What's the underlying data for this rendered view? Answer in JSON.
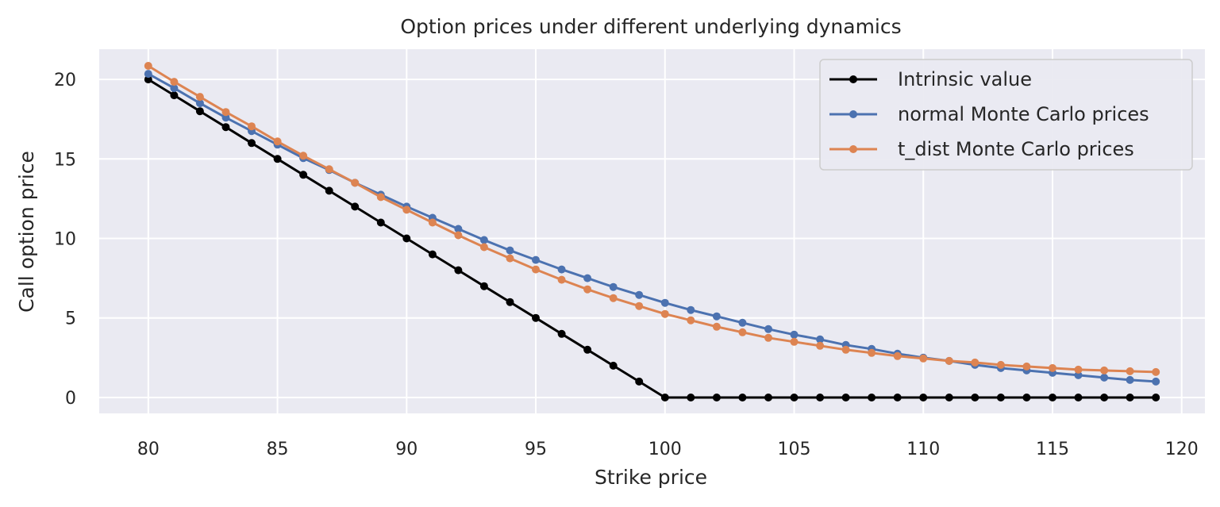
{
  "chart_data": {
    "type": "line",
    "title": "Option prices under different underlying dynamics",
    "xlabel": "Strike price",
    "ylabel": "Call option price",
    "xlim": [
      78.1,
      120.9
    ],
    "ylim": [
      -1.0,
      21.9
    ],
    "xticks": [
      80,
      85,
      90,
      95,
      100,
      105,
      110,
      115,
      120
    ],
    "yticks": [
      0,
      5,
      10,
      15,
      20
    ],
    "grid": true,
    "legend_position": "top-right",
    "x": [
      80,
      81,
      82,
      83,
      84,
      85,
      86,
      87,
      88,
      89,
      90,
      91,
      92,
      93,
      94,
      95,
      96,
      97,
      98,
      99,
      100,
      101,
      102,
      103,
      104,
      105,
      106,
      107,
      108,
      109,
      110,
      111,
      112,
      113,
      114,
      115,
      116,
      117,
      118,
      119
    ],
    "series": [
      {
        "name": "Intrinsic value",
        "color": "#000000",
        "values": [
          20,
          19,
          18,
          17,
          16,
          15,
          14,
          13,
          12,
          11,
          10,
          9,
          8,
          7,
          6,
          5,
          4,
          3,
          2,
          1,
          0,
          0,
          0,
          0,
          0,
          0,
          0,
          0,
          0,
          0,
          0,
          0,
          0,
          0,
          0,
          0,
          0,
          0,
          0,
          0
        ]
      },
      {
        "name": "normal Monte Carlo prices",
        "color": "#4c72b0",
        "values": [
          20.35,
          19.45,
          18.5,
          17.6,
          16.75,
          15.9,
          15.05,
          14.3,
          13.5,
          12.75,
          12.0,
          11.3,
          10.6,
          9.9,
          9.25,
          8.65,
          8.05,
          7.5,
          6.95,
          6.45,
          5.95,
          5.5,
          5.1,
          4.7,
          4.3,
          3.95,
          3.65,
          3.3,
          3.05,
          2.75,
          2.5,
          2.3,
          2.05,
          1.85,
          1.7,
          1.55,
          1.4,
          1.25,
          1.1,
          1.0
        ]
      },
      {
        "name": "t_dist Monte Carlo prices",
        "color": "#dd8452",
        "values": [
          20.85,
          19.85,
          18.9,
          17.95,
          17.05,
          16.1,
          15.2,
          14.35,
          13.5,
          12.6,
          11.8,
          11.0,
          10.2,
          9.45,
          8.75,
          8.05,
          7.4,
          6.8,
          6.25,
          5.75,
          5.25,
          4.85,
          4.45,
          4.1,
          3.75,
          3.5,
          3.25,
          3.0,
          2.8,
          2.6,
          2.45,
          2.3,
          2.2,
          2.05,
          1.95,
          1.85,
          1.75,
          1.7,
          1.65,
          1.6
        ]
      }
    ]
  }
}
